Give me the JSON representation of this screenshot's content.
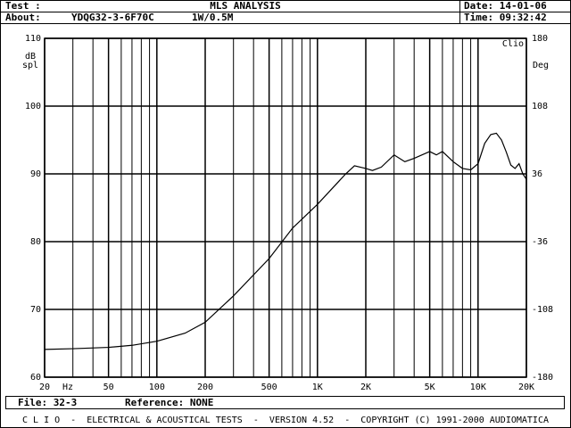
{
  "header": {
    "test_label": "Test :",
    "title": "MLS ANALYSIS",
    "date": "Date: 14-01-06",
    "about_label": "About:",
    "about_name": "YDQG32-3-6F70C",
    "about_level": "1W/0.5M",
    "time": "Time: 09:32:42"
  },
  "chart_data": {
    "type": "line",
    "xscale": "log",
    "grid": true,
    "color": "#000000",
    "ylabel_lines": [
      "dB",
      "spl"
    ],
    "y2label": "Deg",
    "x_unit": "Hz",
    "brand": "Clio",
    "xlim": [
      20,
      20000
    ],
    "ylim": [
      60,
      110
    ],
    "y2lim": [
      -180,
      180
    ],
    "xticks": [
      20,
      50,
      100,
      200,
      500,
      {
        "value": 1000,
        "label": "1K"
      },
      {
        "value": 2000,
        "label": "2K"
      },
      {
        "value": 5000,
        "label": "5K"
      },
      {
        "value": 10000,
        "label": "10K"
      },
      {
        "value": 20000,
        "label": "20K"
      }
    ],
    "xminor": [
      30,
      40,
      60,
      70,
      80,
      90,
      300,
      400,
      600,
      700,
      800,
      900,
      3000,
      4000,
      6000,
      7000,
      8000,
      9000
    ],
    "yticks": [
      60,
      70,
      80,
      90,
      100,
      110
    ],
    "y2ticks": [
      -180,
      -108,
      -36,
      36,
      108,
      180
    ],
    "series": [
      {
        "color": "#000000",
        "x": [
          20,
          30,
          50,
          70,
          100,
          150,
          200,
          300,
          500,
          700,
          1000,
          1500,
          1700,
          2000,
          2200,
          2500,
          3000,
          3500,
          4000,
          5000,
          5500,
          6000,
          7000,
          8000,
          9000,
          10000,
          11000,
          12000,
          13000,
          14000,
          15000,
          16000,
          17000,
          18000,
          19000,
          20000
        ],
        "values": [
          64.1,
          64.2,
          64.4,
          64.7,
          65.3,
          66.5,
          68.1,
          72,
          77.5,
          82,
          85.5,
          90,
          91.2,
          90.8,
          90.5,
          91,
          92.8,
          91.8,
          92.3,
          93.3,
          92.8,
          93.3,
          91.8,
          90.8,
          90.6,
          91.5,
          94.5,
          95.8,
          96,
          95,
          93.2,
          91.3,
          90.8,
          91.5,
          90,
          89.2
        ]
      }
    ]
  },
  "footer": {
    "file": "File: 32-3",
    "reference": "Reference: NONE",
    "credits": "C L I O  -  ELECTRICAL & ACOUSTICAL TESTS  -  VERSION 4.52  -  COPYRIGHT (C) 1991-2000 AUDIOMATICA"
  }
}
